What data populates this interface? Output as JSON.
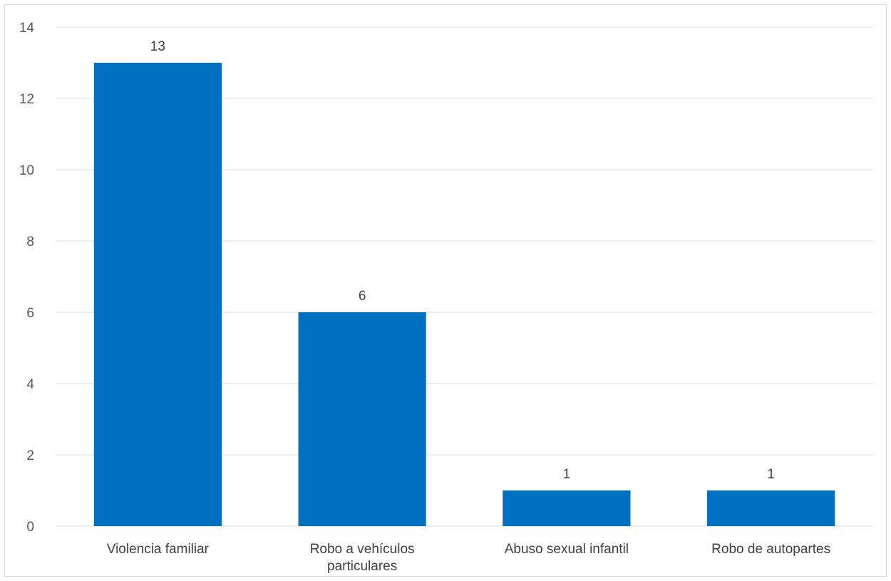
{
  "chart_data": {
    "type": "bar",
    "title": "",
    "xlabel": "",
    "ylabel": "",
    "categories": [
      [
        "Violencia familiar"
      ],
      [
        "Robo a vehículos",
        "particulares"
      ],
      [
        "Abuso sexual infantil"
      ],
      [
        "Robo de autopartes"
      ]
    ],
    "values": [
      13,
      6,
      1,
      1
    ],
    "ylim": [
      0,
      14
    ],
    "yticks": [
      0,
      2,
      4,
      6,
      8,
      10,
      12,
      14
    ],
    "grid": true,
    "legend": "none",
    "bar_color": "#0070C0",
    "grid_color": "#d9d9d9"
  }
}
